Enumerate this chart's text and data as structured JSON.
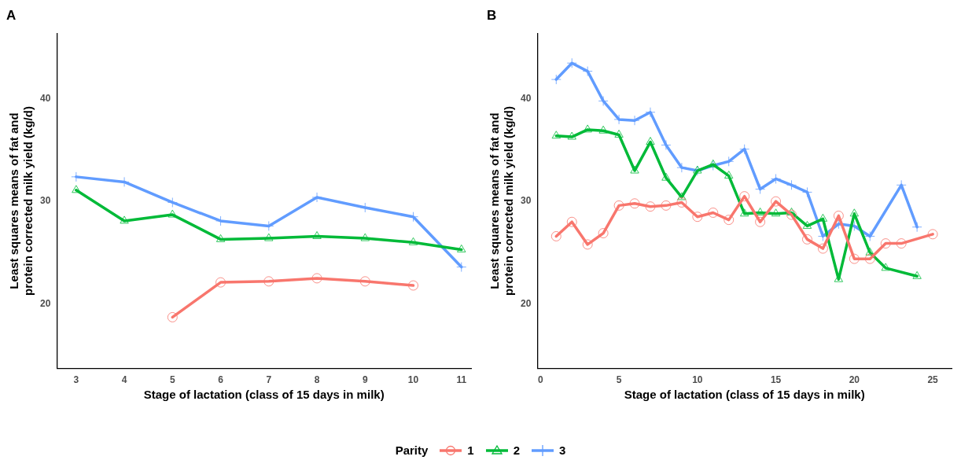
{
  "chart_data": [
    {
      "type": "line",
      "title": "A",
      "xlabel": "Stage of lactation (class of 15 days in milk)",
      "ylabel": "Least squares means of fat and protein corrected milk yield (kg/d)",
      "legend_title": "Parity",
      "legend": "bottom",
      "xlim": [
        2.6,
        11.2
      ],
      "xticks": [
        3,
        4,
        5,
        6,
        7,
        8,
        9,
        10,
        11
      ],
      "ylim": [
        13.7,
        46.4
      ],
      "yticks": [
        20,
        30,
        40
      ],
      "grid": false,
      "series": [
        {
          "name": "1",
          "color": "#f8766d",
          "marker": "circle",
          "x": [
            5,
            6,
            7,
            8,
            9,
            10
          ],
          "values": [
            18.7,
            22.1,
            22.2,
            22.5,
            22.2,
            21.8
          ]
        },
        {
          "name": "2",
          "color": "#00ba38",
          "marker": "triangle",
          "x": [
            3,
            4,
            5,
            6,
            7,
            8,
            9,
            10,
            11
          ],
          "values": [
            31.1,
            28.1,
            28.7,
            26.3,
            26.4,
            26.6,
            26.4,
            26.0,
            25.3
          ]
        },
        {
          "name": "3",
          "color": "#619cff",
          "marker": "cross",
          "x": [
            3,
            4,
            5,
            6,
            7,
            8,
            9,
            10,
            11
          ],
          "values": [
            32.4,
            31.9,
            29.9,
            28.1,
            27.6,
            30.4,
            29.4,
            28.5,
            23.6
          ]
        }
      ]
    },
    {
      "type": "line",
      "title": "B",
      "xlabel": "Stage of lactation (class of 15 days in milk)",
      "ylabel": "Least squares means of fat and protein corrected milk yield (kg/d)",
      "xlim": [
        -0.2,
        26.2
      ],
      "xticks": [
        0,
        5,
        10,
        15,
        20,
        25
      ],
      "ylim": [
        13.7,
        46.4
      ],
      "yticks": [
        20,
        30,
        40
      ],
      "grid": false,
      "series": [
        {
          "name": "1",
          "color": "#f8766d",
          "marker": "circle",
          "x": [
            1,
            2,
            3,
            4,
            5,
            6,
            7,
            8,
            9,
            10,
            11,
            12,
            13,
            14,
            15,
            16,
            17,
            18,
            19,
            20,
            21,
            22,
            23,
            25
          ],
          "values": [
            26.6,
            28.0,
            25.8,
            26.9,
            29.6,
            29.8,
            29.5,
            29.6,
            29.9,
            28.5,
            28.9,
            28.2,
            30.5,
            28.0,
            30.0,
            28.7,
            26.3,
            25.4,
            28.6,
            24.4,
            24.4,
            25.9,
            25.9,
            26.8
          ]
        },
        {
          "name": "2",
          "color": "#00ba38",
          "marker": "triangle",
          "x": [
            1,
            2,
            3,
            4,
            5,
            6,
            7,
            8,
            9,
            10,
            11,
            12,
            13,
            14,
            15,
            16,
            17,
            18,
            19,
            20,
            21,
            22,
            24
          ],
          "values": [
            36.4,
            36.3,
            37.0,
            36.9,
            36.5,
            33.0,
            35.8,
            32.3,
            30.4,
            33.0,
            33.6,
            32.5,
            28.8,
            28.9,
            28.8,
            28.9,
            27.6,
            28.3,
            22.4,
            28.8,
            25.0,
            23.5,
            22.7
          ]
        },
        {
          "name": "3",
          "color": "#619cff",
          "marker": "cross",
          "x": [
            1,
            2,
            3,
            4,
            5,
            6,
            7,
            8,
            9,
            10,
            11,
            12,
            13,
            14,
            15,
            16,
            17,
            18,
            19,
            20,
            21,
            23,
            24
          ],
          "values": [
            41.9,
            43.5,
            42.7,
            39.8,
            38.0,
            37.9,
            38.7,
            35.5,
            33.3,
            33.0,
            33.5,
            33.9,
            35.1,
            31.2,
            32.2,
            31.6,
            30.9,
            26.6,
            27.8,
            27.6,
            26.6,
            31.6,
            27.5
          ]
        }
      ]
    }
  ]
}
